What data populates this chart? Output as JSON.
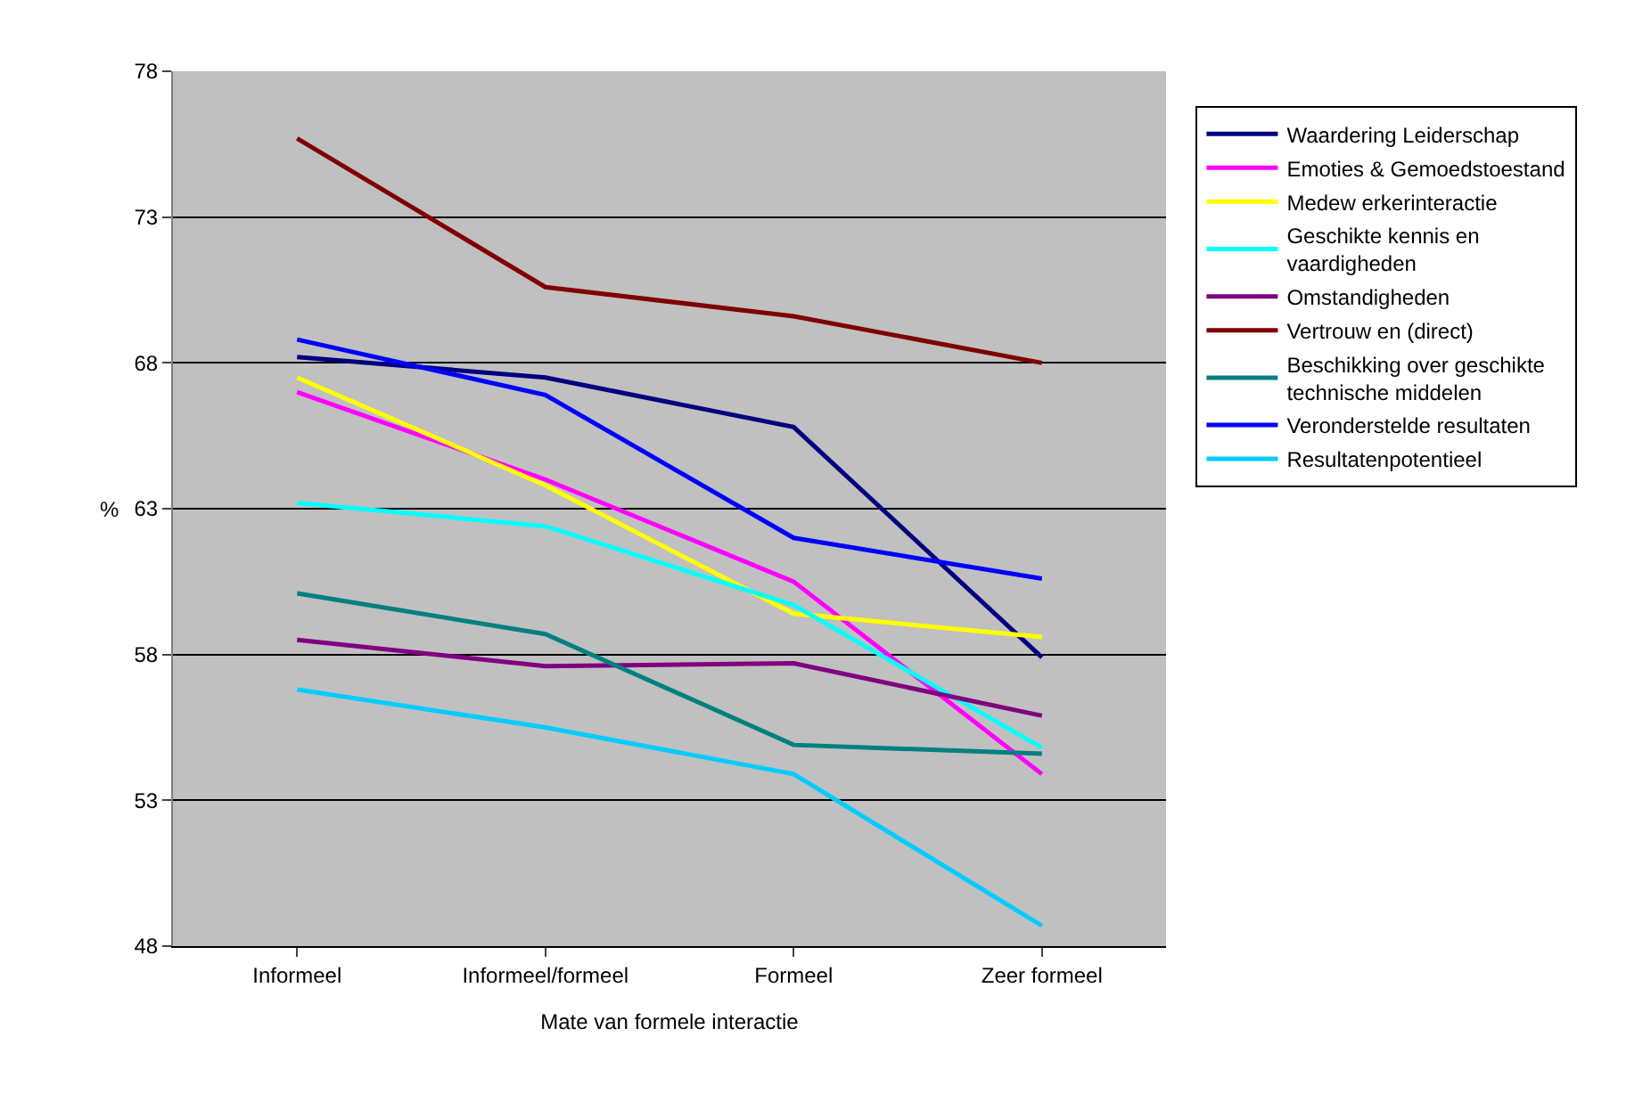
{
  "chart_data": {
    "type": "line",
    "xlabel": "Mate van formele interactie",
    "ylabel": "%",
    "categories": [
      "Informeel",
      "Informeel/formeel",
      "Formeel",
      "Zeer formeel"
    ],
    "ylim": [
      48,
      78
    ],
    "yticks": [
      48,
      53,
      58,
      63,
      68,
      73,
      78
    ],
    "grid": "y",
    "legend": "right",
    "marker": "none",
    "line_style": "solid",
    "series": [
      {
        "name": "Waardering Leiderschap",
        "color": "#000080",
        "values": [
          68.2,
          67.5,
          65.8,
          57.9
        ]
      },
      {
        "name": "Emoties & Gemoedstoestand",
        "color": "#ff00ff",
        "values": [
          67.0,
          64.0,
          60.5,
          53.9
        ]
      },
      {
        "name": "Medew erkerinteractie",
        "color": "#ffff00",
        "values": [
          67.5,
          63.8,
          59.4,
          58.6
        ]
      },
      {
        "name": "Geschikte kennis en vaardigheden",
        "color": "#00ffff",
        "values": [
          63.2,
          62.4,
          59.7,
          54.8
        ]
      },
      {
        "name": "Omstandigheden",
        "color": "#800080",
        "values": [
          58.5,
          57.6,
          57.7,
          55.9
        ]
      },
      {
        "name": "Vertrouw en (direct)",
        "color": "#800000",
        "values": [
          75.7,
          70.6,
          69.6,
          68.0
        ]
      },
      {
        "name": "Beschikking over geschikte technische middelen",
        "color": "#008080",
        "values": [
          60.1,
          58.7,
          54.9,
          54.6
        ]
      },
      {
        "name": "Veronderstelde resultaten",
        "color": "#0000ff",
        "values": [
          68.8,
          66.9,
          62.0,
          60.6
        ]
      },
      {
        "name": "Resultatenpotentieel",
        "color": "#00ccff",
        "values": [
          56.8,
          55.5,
          53.9,
          48.7
        ]
      }
    ]
  }
}
